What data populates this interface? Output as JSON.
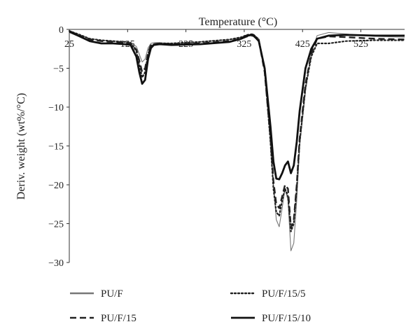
{
  "chart_data": {
    "type": "line",
    "title": "",
    "xlabel": "Temperature (°C)",
    "ylabel": "Deriv. weight (wt%/°C)",
    "xlim": [
      25,
      600
    ],
    "ylim": [
      -30,
      0
    ],
    "x_ticks": [
      "25",
      "125",
      "225",
      "325",
      "425",
      "525"
    ],
    "y_ticks": [
      "0",
      "−5",
      "−10",
      "−15",
      "−20",
      "−25",
      "−30"
    ],
    "grid": false,
    "legend_position": "bottom",
    "series": [
      {
        "name": "PU/F",
        "style": "solid-thin",
        "color": "#777777",
        "x": [
          25,
          40,
          60,
          80,
          100,
          120,
          130,
          140,
          145,
          150,
          155,
          160,
          165,
          170,
          180,
          200,
          250,
          300,
          320,
          330,
          340,
          350,
          360,
          370,
          375,
          380,
          385,
          390,
          395,
          400,
          405,
          410,
          415,
          420,
          430,
          440,
          450,
          470,
          500,
          550,
          600
        ],
        "y": [
          -0.2,
          -0.6,
          -1.2,
          -1.4,
          -1.5,
          -1.6,
          -1.7,
          -2.2,
          -3.2,
          -4.2,
          -3.8,
          -2.4,
          -1.8,
          -1.7,
          -1.7,
          -1.8,
          -1.6,
          -1.3,
          -1.0,
          -0.7,
          -0.6,
          -1.2,
          -5.0,
          -14.0,
          -20.0,
          -24.5,
          -25.4,
          -23.0,
          -20.5,
          -22.0,
          -28.5,
          -27.5,
          -22.0,
          -15.0,
          -8.0,
          -3.0,
          -0.8,
          -0.4,
          -0.6,
          -0.9,
          -1.0
        ]
      },
      {
        "name": "PU/F/15",
        "style": "dashed",
        "color": "#222222",
        "x": [
          25,
          40,
          60,
          80,
          100,
          120,
          130,
          140,
          145,
          150,
          155,
          160,
          165,
          170,
          180,
          200,
          250,
          300,
          320,
          330,
          340,
          350,
          360,
          370,
          375,
          380,
          385,
          390,
          395,
          400,
          405,
          410,
          415,
          420,
          430,
          440,
          450,
          470,
          500,
          550,
          600
        ],
        "y": [
          -0.2,
          -0.7,
          -1.3,
          -1.5,
          -1.6,
          -1.7,
          -1.8,
          -2.6,
          -4.0,
          -5.5,
          -5.0,
          -3.0,
          -2.0,
          -1.9,
          -1.8,
          -1.9,
          -1.8,
          -1.5,
          -1.2,
          -0.9,
          -0.8,
          -1.4,
          -5.5,
          -14.0,
          -19.5,
          -22.5,
          -23.0,
          -21.5,
          -20.0,
          -20.5,
          -25.5,
          -24.5,
          -20.0,
          -14.0,
          -7.0,
          -3.2,
          -1.2,
          -0.9,
          -1.0,
          -1.2,
          -1.3
        ]
      },
      {
        "name": "PU/F/15/5",
        "style": "dotted",
        "color": "#222222",
        "x": [
          25,
          40,
          60,
          80,
          100,
          120,
          130,
          140,
          145,
          150,
          155,
          160,
          165,
          170,
          180,
          200,
          250,
          300,
          320,
          330,
          340,
          350,
          360,
          370,
          375,
          380,
          385,
          390,
          395,
          400,
          405,
          410,
          415,
          420,
          430,
          440,
          450,
          470,
          500,
          550,
          600
        ],
        "y": [
          -0.2,
          -0.6,
          -1.2,
          -1.4,
          -1.5,
          -1.6,
          -1.7,
          -2.8,
          -4.5,
          -6.2,
          -5.5,
          -3.2,
          -2.1,
          -1.9,
          -1.8,
          -1.8,
          -1.6,
          -1.3,
          -1.0,
          -0.7,
          -0.6,
          -1.3,
          -5.2,
          -14.5,
          -20.5,
          -23.5,
          -24.0,
          -22.0,
          -20.5,
          -21.5,
          -26.0,
          -25.0,
          -20.5,
          -14.5,
          -7.5,
          -3.5,
          -1.8,
          -1.8,
          -1.5,
          -1.4,
          -1.4
        ]
      },
      {
        "name": "PU/F/15/10",
        "style": "solid-thick",
        "color": "#111111",
        "x": [
          25,
          40,
          60,
          80,
          100,
          120,
          130,
          140,
          145,
          150,
          155,
          160,
          165,
          170,
          180,
          200,
          250,
          300,
          320,
          330,
          340,
          350,
          360,
          370,
          375,
          380,
          385,
          390,
          395,
          400,
          405,
          410,
          415,
          420,
          430,
          440,
          450,
          470,
          500,
          550,
          600
        ],
        "y": [
          -0.3,
          -0.8,
          -1.5,
          -1.8,
          -1.8,
          -1.9,
          -2.0,
          -3.5,
          -5.5,
          -7.0,
          -6.5,
          -3.8,
          -2.4,
          -2.0,
          -1.9,
          -2.0,
          -1.9,
          -1.6,
          -1.2,
          -0.8,
          -0.7,
          -1.5,
          -5.0,
          -12.5,
          -17.0,
          -19.2,
          -19.3,
          -18.5,
          -17.5,
          -17.0,
          -18.5,
          -17.5,
          -14.5,
          -10.5,
          -5.0,
          -2.5,
          -1.2,
          -0.8,
          -0.7,
          -0.8,
          -0.8
        ]
      }
    ]
  }
}
